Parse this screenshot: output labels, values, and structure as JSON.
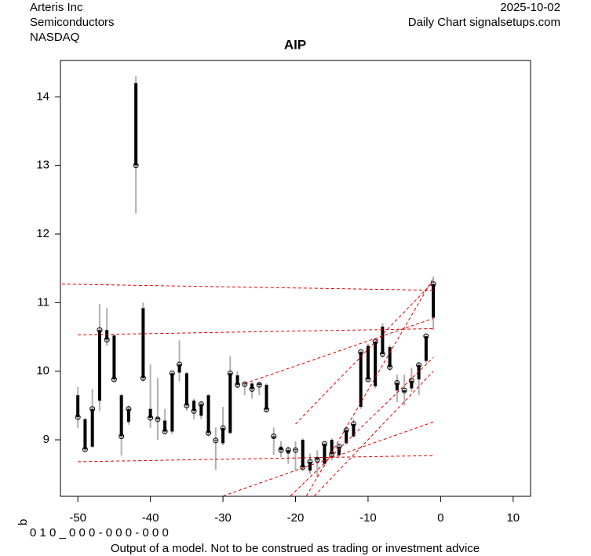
{
  "header": {
    "company": "Arteris Inc",
    "sector": "Semiconductors",
    "exchange": "NASDAQ",
    "date": "2025-10-02",
    "source": "Daily Chart signalsetups.com"
  },
  "footer": {
    "disclaimer": "Output of a model. Not to be construed as trading or investment advice",
    "side_label": "b",
    "code": "0 1 0 _ 0 0 0 - 0 0 0 - 0 0 0"
  },
  "chart_data": {
    "type": "candlestick",
    "title": "AIP",
    "x": [
      -50,
      -49,
      -48,
      -47,
      -46,
      -45,
      -44,
      -43,
      -42,
      -41,
      -40,
      -39,
      -38,
      -37,
      -36,
      -35,
      -34,
      -33,
      -32,
      -31,
      -30,
      -29,
      -28,
      -27,
      -26,
      -25,
      -24,
      -23,
      -22,
      -21,
      -20,
      -19,
      -18,
      -17,
      -16,
      -15,
      -14,
      -13,
      -12,
      -11,
      -10,
      -9,
      -8,
      -7,
      -6,
      -5,
      -4,
      -3,
      -2,
      -1
    ],
    "open": [
      9.65,
      9.3,
      8.9,
      9.57,
      10.6,
      10.52,
      9.65,
      9.26,
      14.2,
      10.92,
      9.45,
      9.32,
      9.28,
      9.12,
      9.98,
      9.97,
      9.57,
      9.35,
      9.65,
      9.0,
      8.95,
      9.1,
      9.94,
      9.82,
      9.82,
      9.82,
      9.8,
      9.03,
      8.9,
      8.8,
      8.86,
      9.0,
      8.55,
      8.75,
      8.65,
      9.0,
      8.78,
      8.95,
      9.05,
      9.48,
      10.37,
      9.78,
      10.65,
      10.35,
      9.72,
      9.7,
      9.75,
      9.88,
      10.15,
      10.78
    ],
    "high": [
      9.77,
      9.32,
      9.74,
      10.98,
      10.92,
      10.54,
      9.67,
      9.5,
      14.3,
      11.0,
      10.1,
      9.9,
      9.45,
      9.99,
      10.45,
      9.99,
      9.6,
      9.55,
      9.67,
      9.18,
      9.48,
      10.22,
      10.0,
      9.85,
      9.84,
      9.85,
      9.82,
      9.18,
      8.98,
      8.9,
      8.98,
      9.02,
      8.8,
      8.85,
      8.96,
      9.02,
      8.95,
      9.2,
      9.3,
      10.3,
      10.4,
      10.45,
      10.7,
      10.38,
      9.95,
      9.95,
      10.05,
      10.12,
      10.53,
      11.38
    ],
    "low": [
      9.17,
      8.84,
      8.88,
      9.42,
      10.37,
      9.85,
      8.77,
      9.22,
      12.3,
      9.85,
      9.17,
      9.0,
      9.08,
      9.08,
      9.85,
      9.42,
      9.3,
      9.3,
      9.05,
      8.56,
      8.92,
      9.08,
      9.75,
      9.65,
      9.6,
      9.65,
      9.4,
      8.78,
      8.75,
      8.65,
      8.55,
      8.55,
      8.5,
      8.45,
      8.6,
      8.7,
      8.75,
      8.93,
      9.03,
      9.45,
      9.85,
      9.75,
      10.2,
      10.0,
      9.55,
      9.5,
      9.7,
      9.65,
      10.12,
      10.6
    ],
    "close": [
      9.33,
      8.86,
      9.45,
      10.6,
      10.46,
      9.88,
      9.05,
      9.45,
      13.0,
      9.9,
      9.32,
      9.3,
      9.12,
      9.97,
      10.1,
      9.5,
      9.42,
      9.52,
      9.1,
      8.99,
      9.17,
      9.97,
      9.8,
      9.81,
      9.74,
      9.8,
      9.44,
      9.05,
      8.85,
      8.85,
      8.85,
      8.6,
      8.68,
      8.71,
      8.94,
      8.79,
      8.9,
      9.14,
      9.23,
      10.28,
      9.88,
      10.43,
      10.25,
      10.06,
      9.83,
      9.72,
      9.86,
      10.09,
      10.51,
      11.27
    ],
    "trend_lines": [
      {
        "x": [
          -52.2,
          -1
        ],
        "y": [
          11.27,
          11.18
        ]
      },
      {
        "x": [
          -50,
          -1
        ],
        "y": [
          10.53,
          10.62
        ]
      },
      {
        "x": [
          -50,
          -1
        ],
        "y": [
          8.68,
          8.77
        ]
      },
      {
        "x": [
          -30,
          -1
        ],
        "y": [
          8.18,
          9.26
        ]
      },
      {
        "x": [
          -20,
          -1
        ],
        "y": [
          9.23,
          11.3
        ]
      },
      {
        "x": [
          -27,
          -1
        ],
        "y": [
          9.82,
          10.77
        ]
      },
      {
        "x": [
          -20.7,
          -1
        ],
        "y": [
          8.18,
          10.2
        ]
      },
      {
        "x": [
          -17.4,
          -1
        ],
        "y": [
          8.18,
          10.0
        ]
      },
      {
        "x": [
          -18.5,
          -1
        ],
        "y": [
          8.18,
          11.36
        ]
      }
    ],
    "body_color": "#000000",
    "wick_color": "#b0b0b0",
    "line_color": "#dd0000",
    "xlim": [
      -52.4,
      12.4
    ],
    "ylim": [
      8.176,
      14.53
    ],
    "xticks": [
      -50,
      -40,
      -30,
      -20,
      -10,
      0,
      10
    ],
    "yticks": [
      9,
      10,
      11,
      12,
      13,
      14
    ]
  }
}
